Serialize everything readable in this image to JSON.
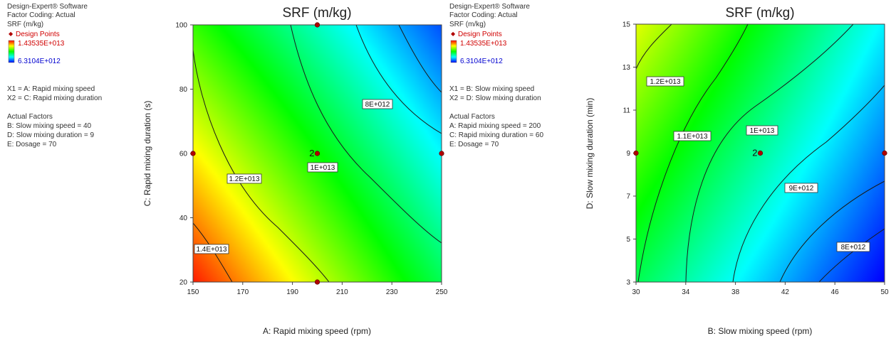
{
  "panels": [
    {
      "info": {
        "software": "Design-Expert® Software",
        "coding": "Factor Coding: Actual",
        "response": "SRF (m/kg)",
        "design_points_label": "Design Points",
        "max_label": "1.43535E+013",
        "min_label": "6.3104E+012",
        "x1_label": "X1 = A: Rapid mixing speed",
        "x2_label": "X2 = C: Rapid mixing duration",
        "actual_factors_title": "Actual Factors",
        "factors": [
          "B: Slow mixing speed = 40",
          "D: Slow mixing duration = 9",
          "E: Dosage = 70"
        ]
      },
      "chart": {
        "type": "heatmap",
        "title": "SRF (m/kg)",
        "xlabel": "A: Rapid mixing speed (rpm)",
        "ylabel": "C: Rapid mixing duration (s)",
        "xlim": [
          150,
          250
        ],
        "ylim": [
          20,
          100
        ],
        "xticks": [
          "150",
          "170",
          "190",
          "210",
          "230",
          "250"
        ],
        "yticks": [
          "20",
          "40",
          "60",
          "80",
          "100"
        ],
        "color_range": [
          6310400000000.0,
          14353500000000.0
        ],
        "contour_labels": [
          "1.4E+013",
          "1.2E+013",
          "1E+013",
          "8E+012"
        ],
        "design_points": [
          {
            "x": 200,
            "y": 100,
            "label": ""
          },
          {
            "x": 150,
            "y": 60,
            "label": ""
          },
          {
            "x": 200,
            "y": 60,
            "label": "2"
          },
          {
            "x": 250,
            "y": 60,
            "label": ""
          },
          {
            "x": 200,
            "y": 20,
            "label": ""
          }
        ]
      }
    },
    {
      "info": {
        "software": "Design-Expert® Software",
        "coding": "Factor Coding: Actual",
        "response": "SRF (m/kg)",
        "design_points_label": "Design Points",
        "max_label": "1.43535E+013",
        "min_label": "6.3104E+012",
        "x1_label": "X1 = B: Slow mixing speed",
        "x2_label": "X2 = D: Slow mixing duration",
        "actual_factors_title": "Actual Factors",
        "factors": [
          "A: Rapid mixing speed = 200",
          "C: Rapid mixing duration = 60",
          "E: Dosage = 70"
        ]
      },
      "chart": {
        "type": "heatmap",
        "title": "SRF (m/kg)",
        "xlabel": "B: Slow mixing speed (rpm)",
        "ylabel": "D: Slow mixing duration (min)",
        "xlim": [
          30,
          50
        ],
        "ylim": [
          3,
          15
        ],
        "xticks": [
          "30",
          "34",
          "38",
          "42",
          "46",
          "50"
        ],
        "yticks": [
          "3",
          "5",
          "7",
          "9",
          "11",
          "13",
          "15"
        ],
        "color_range": [
          6310400000000.0,
          14353500000000.0
        ],
        "contour_labels": [
          "1.2E+013",
          "1.1E+013",
          "1E+013",
          "9E+012",
          "8E+012"
        ],
        "design_points": [
          {
            "x": 30,
            "y": 9,
            "label": ""
          },
          {
            "x": 40,
            "y": 9,
            "label": "2"
          },
          {
            "x": 50,
            "y": 9,
            "label": ""
          }
        ]
      }
    }
  ],
  "colors": {
    "high": "#e00000",
    "low": "#0000ff",
    "design_point": "#b00000",
    "info_red": "#d00000",
    "info_blue": "#0000d0"
  }
}
